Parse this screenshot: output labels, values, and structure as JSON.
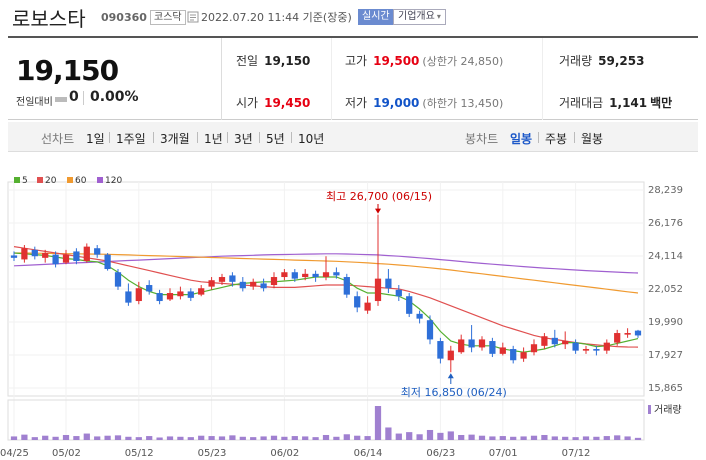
{
  "header": {
    "name": "로보스타",
    "code": "090360",
    "market": "코스닥",
    "timestamp": "2022.07.20 11:44 기준(장중)",
    "realtime": "실시간",
    "company_overview": "기업개요",
    "company_overview_caret": "▾"
  },
  "price": {
    "current": "19,150",
    "change_label": "전일대비",
    "change_value": "0",
    "change_rate": "0.00%"
  },
  "stats": {
    "prev_close_label": "전일",
    "prev_close": "19,150",
    "high_label": "고가",
    "high": "19,500",
    "upper_limit": "(상한가 24,850)",
    "volume_label": "거래량",
    "volume": "59,253",
    "open_label": "시가",
    "open": "19,450",
    "low_label": "저가",
    "low": "19,000",
    "lower_limit": "(하한가 13,450)",
    "amount_label": "거래대금",
    "amount": "1,141",
    "amount_unit": "백만"
  },
  "toolbar": {
    "line_chart_label": "선차트",
    "periods": [
      "1일",
      "1주일",
      "3개월",
      "1년",
      "3년",
      "5년",
      "10년"
    ],
    "candle_chart_label": "봉차트",
    "candle_periods": [
      "일봉",
      "주봉",
      "월봉"
    ],
    "active_candle": "일봉"
  },
  "colors": {
    "up": "#e03030",
    "down": "#2e6fd8",
    "ma5": "#55b030",
    "ma20": "#e05050",
    "ma60": "#f09a30",
    "ma120": "#a060d0",
    "volume": "#a080d0"
  },
  "chart_data": {
    "type": "candlestick",
    "indicators": [
      "5",
      "20",
      "60",
      "120"
    ],
    "y_ticks": [
      "28,239",
      "26,176",
      "24,114",
      "22,052",
      "19,990",
      "17,927",
      "15,865"
    ],
    "ylim": [
      15865,
      28239
    ],
    "x_tick_labels": [
      "04/25",
      "05/02",
      "05/12",
      "05/23",
      "06/02",
      "06/14",
      "06/23",
      "07/01",
      "07/12"
    ],
    "x_tick_index": [
      0,
      5,
      12,
      19,
      26,
      34,
      41,
      47,
      54
    ],
    "high_annotation": "최고 26,700 (06/15)",
    "low_annotation": "최저 16,850 (06/24)",
    "high_index": 35,
    "low_index": 42,
    "volume_label": "거래량",
    "candles": [
      [
        24150,
        24000,
        24400,
        23800
      ],
      [
        23900,
        24600,
        24800,
        23700
      ],
      [
        24500,
        24100,
        24700,
        23900
      ],
      [
        24000,
        24300,
        24500,
        23700
      ],
      [
        24200,
        23600,
        24400,
        23400
      ],
      [
        23700,
        24200,
        24500,
        23600
      ],
      [
        24400,
        23800,
        24600,
        23600
      ],
      [
        23800,
        24700,
        24900,
        23700
      ],
      [
        24600,
        24200,
        24800,
        24000
      ],
      [
        24200,
        23300,
        24300,
        23200
      ],
      [
        23100,
        22200,
        23300,
        22000
      ],
      [
        21900,
        21200,
        22400,
        21000
      ],
      [
        21300,
        22100,
        22500,
        21100
      ],
      [
        22300,
        21900,
        22600,
        21700
      ],
      [
        21800,
        21300,
        22000,
        21100
      ],
      [
        21400,
        21800,
        22100,
        21300
      ],
      [
        21600,
        21900,
        22200,
        21400
      ],
      [
        21900,
        21500,
        22100,
        21300
      ],
      [
        21700,
        22100,
        22300,
        21600
      ],
      [
        22200,
        22600,
        22800,
        22000
      ],
      [
        22500,
        22800,
        23000,
        22300
      ],
      [
        22900,
        22500,
        23100,
        22200
      ],
      [
        22500,
        22100,
        22800,
        21900
      ],
      [
        22200,
        22500,
        22700,
        22000
      ],
      [
        22400,
        22100,
        22700,
        21900
      ],
      [
        22300,
        22800,
        23100,
        22100
      ],
      [
        22800,
        23100,
        23300,
        22600
      ],
      [
        23100,
        22700,
        23300,
        22500
      ],
      [
        22800,
        23000,
        23300,
        22600
      ],
      [
        23000,
        22800,
        23200,
        22500
      ],
      [
        22800,
        23100,
        24100,
        22600
      ],
      [
        23100,
        22900,
        23400,
        22700
      ],
      [
        22800,
        21700,
        23000,
        21500
      ],
      [
        21600,
        20900,
        21900,
        20600
      ],
      [
        20700,
        21200,
        21600,
        20500
      ],
      [
        21300,
        22700,
        26700,
        21000
      ],
      [
        22700,
        22100,
        23300,
        21800
      ],
      [
        22000,
        21600,
        22300,
        21300
      ],
      [
        21600,
        20500,
        21800,
        20300
      ],
      [
        20500,
        20200,
        20700,
        19900
      ],
      [
        20100,
        18900,
        20400,
        18600
      ],
      [
        18800,
        17700,
        19000,
        17400
      ],
      [
        17600,
        18200,
        18500,
        16850
      ],
      [
        18100,
        18900,
        19200,
        18000
      ],
      [
        18900,
        18400,
        19800,
        18100
      ],
      [
        18400,
        18900,
        19100,
        18200
      ],
      [
        18800,
        18000,
        19000,
        17800
      ],
      [
        18000,
        18400,
        18700,
        17900
      ],
      [
        18300,
        17600,
        18500,
        17400
      ],
      [
        17700,
        18100,
        18400,
        17500
      ],
      [
        18100,
        18600,
        18900,
        17900
      ],
      [
        18500,
        19100,
        19300,
        18300
      ],
      [
        19000,
        18600,
        19500,
        18400
      ],
      [
        18600,
        18800,
        19400,
        18300
      ],
      [
        18700,
        18200,
        18900,
        18000
      ],
      [
        18200,
        18300,
        18500,
        18000
      ],
      [
        18300,
        18200,
        18500,
        17900
      ],
      [
        18200,
        18700,
        18900,
        18000
      ],
      [
        18700,
        19300,
        19500,
        18500
      ],
      [
        19200,
        19300,
        19600,
        19000
      ],
      [
        19450,
        19150,
        19500,
        19000
      ]
    ],
    "volumes": [
      10,
      15,
      8,
      12,
      9,
      14,
      11,
      18,
      10,
      12,
      13,
      9,
      8,
      11,
      7,
      10,
      9,
      8,
      12,
      11,
      10,
      13,
      9,
      8,
      10,
      12,
      9,
      11,
      10,
      8,
      14,
      9,
      16,
      12,
      11,
      95,
      35,
      18,
      22,
      16,
      28,
      20,
      24,
      14,
      15,
      12,
      10,
      11,
      9,
      10,
      12,
      14,
      10,
      9,
      8,
      10,
      9,
      11,
      13,
      10,
      6
    ],
    "ma5": [
      24300,
      24250,
      24200,
      24150,
      24050,
      23950,
      23900,
      23800,
      23750,
      23500,
      23100,
      22600,
      22200,
      21900,
      21700,
      21700,
      21700,
      21700,
      21850,
      22000,
      22150,
      22300,
      22400,
      22450,
      22500,
      22500,
      22550,
      22600,
      22700,
      22800,
      22800,
      22800,
      22550,
      22100,
      21800,
      21800,
      21700,
      21600,
      21300,
      20800,
      20200,
      19400,
      18800,
      18600,
      18500,
      18500,
      18500,
      18300,
      18200,
      18100,
      18200,
      18300,
      18500,
      18700,
      18700,
      18600,
      18450,
      18500,
      18650,
      18800,
      18950
    ],
    "ma20": [
      24700,
      24600,
      24500,
      24400,
      24300,
      24200,
      24100,
      24000,
      23900,
      23800,
      23650,
      23500,
      23350,
      23200,
      23050,
      22900,
      22750,
      22600,
      22500,
      22450,
      22400,
      22350,
      22300,
      22250,
      22200,
      22150,
      22150,
      22150,
      22200,
      22250,
      22300,
      22300,
      22300,
      22250,
      22200,
      22150,
      22100,
      22050,
      21900,
      21700,
      21500,
      21250,
      21000,
      20750,
      20500,
      20250,
      20000,
      19750,
      19550,
      19350,
      19150,
      19000,
      18900,
      18800,
      18700,
      18620,
      18560,
      18500,
      18450,
      18430,
      18420
    ],
    "ma60": [
      24300,
      24300,
      24290,
      24280,
      24270,
      24260,
      24250,
      24240,
      24230,
      24220,
      24200,
      24180,
      24160,
      24140,
      24120,
      24100,
      24080,
      24060,
      24040,
      24020,
      24000,
      23980,
      23960,
      23940,
      23920,
      23900,
      23880,
      23860,
      23840,
      23820,
      23800,
      23780,
      23750,
      23720,
      23680,
      23640,
      23600,
      23550,
      23500,
      23440,
      23380,
      23310,
      23240,
      23160,
      23080,
      23000,
      22920,
      22840,
      22760,
      22680,
      22600,
      22520,
      22440,
      22360,
      22280,
      22200,
      22120,
      22040,
      21960,
      21880,
      21800
    ],
    "ma120": [
      23500,
      23530,
      23560,
      23590,
      23620,
      23650,
      23680,
      23710,
      23740,
      23770,
      23800,
      23830,
      23860,
      23890,
      23920,
      23950,
      23980,
      24010,
      24040,
      24070,
      24100,
      24120,
      24140,
      24160,
      24180,
      24200,
      24210,
      24220,
      24230,
      24240,
      24250,
      24250,
      24240,
      24220,
      24200,
      24180,
      24140,
      24100,
      24050,
      24000,
      23950,
      23890,
      23830,
      23770,
      23710,
      23650,
      23600,
      23550,
      23500,
      23450,
      23400,
      23360,
      23320,
      23280,
      23240,
      23200,
      23170,
      23140,
      23110,
      23080,
      23050
    ]
  }
}
